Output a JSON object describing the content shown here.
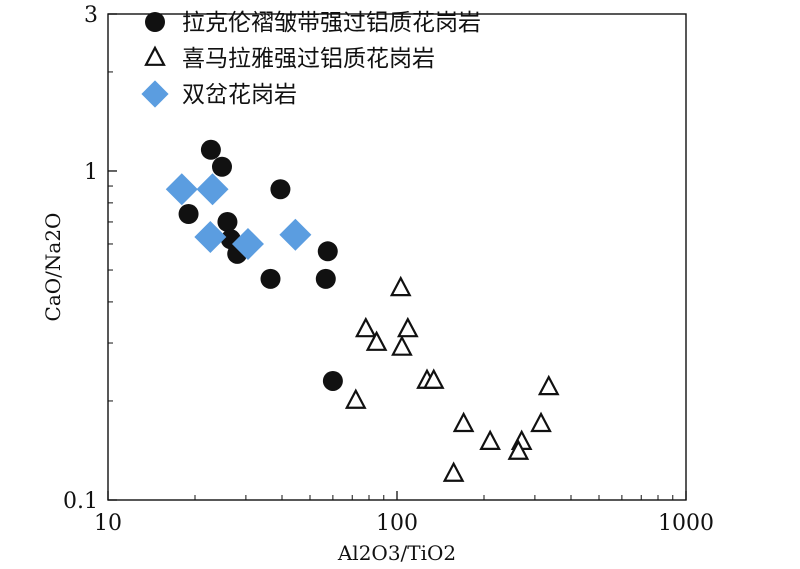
{
  "chart_data": {
    "type": "scatter",
    "xlabel": "Al2O3/TiO2",
    "ylabel": "CaO/Na2O",
    "xscale": "log",
    "yscale": "log",
    "xlim": [
      10,
      1000
    ],
    "ylim": [
      0.1,
      3
    ],
    "x_ticks": [
      10,
      100,
      1000
    ],
    "x_tick_labels": [
      "10",
      "100",
      "1000"
    ],
    "y_ticks": [
      0.1,
      1,
      3
    ],
    "y_tick_labels": [
      "0.1",
      "1",
      "3"
    ],
    "legend_position": "top-left",
    "series": [
      {
        "name": "拉克伦褶皱带强过铝质花岗岩",
        "marker": "filled-circle",
        "color": "#111111",
        "points": [
          {
            "x": 22.7,
            "y": 1.16
          },
          {
            "x": 24.8,
            "y": 1.03
          },
          {
            "x": 19.0,
            "y": 0.74
          },
          {
            "x": 25.9,
            "y": 0.7
          },
          {
            "x": 26.6,
            "y": 0.62
          },
          {
            "x": 28.0,
            "y": 0.56
          },
          {
            "x": 39.5,
            "y": 0.88
          },
          {
            "x": 36.5,
            "y": 0.47
          },
          {
            "x": 57.6,
            "y": 0.57
          },
          {
            "x": 56.7,
            "y": 0.47
          },
          {
            "x": 60.0,
            "y": 0.23
          }
        ]
      },
      {
        "name": "喜马拉雅强过铝质花岗岩",
        "marker": "open-triangle",
        "color": "#111111",
        "points": [
          {
            "x": 103,
            "y": 0.44
          },
          {
            "x": 78,
            "y": 0.33
          },
          {
            "x": 85,
            "y": 0.3
          },
          {
            "x": 109,
            "y": 0.33
          },
          {
            "x": 104,
            "y": 0.29
          },
          {
            "x": 127,
            "y": 0.23
          },
          {
            "x": 134,
            "y": 0.23
          },
          {
            "x": 72,
            "y": 0.2
          },
          {
            "x": 170,
            "y": 0.17
          },
          {
            "x": 210,
            "y": 0.15
          },
          {
            "x": 270,
            "y": 0.15
          },
          {
            "x": 263,
            "y": 0.14
          },
          {
            "x": 315,
            "y": 0.17
          },
          {
            "x": 335,
            "y": 0.22
          },
          {
            "x": 157,
            "y": 0.12
          }
        ]
      },
      {
        "name": "双岔花岗岩",
        "marker": "diamond",
        "color": "#5b9de0",
        "points": [
          {
            "x": 18.0,
            "y": 0.88
          },
          {
            "x": 23.0,
            "y": 0.88
          },
          {
            "x": 22.6,
            "y": 0.63
          },
          {
            "x": 30.5,
            "y": 0.6
          },
          {
            "x": 44.5,
            "y": 0.64
          }
        ]
      }
    ]
  }
}
